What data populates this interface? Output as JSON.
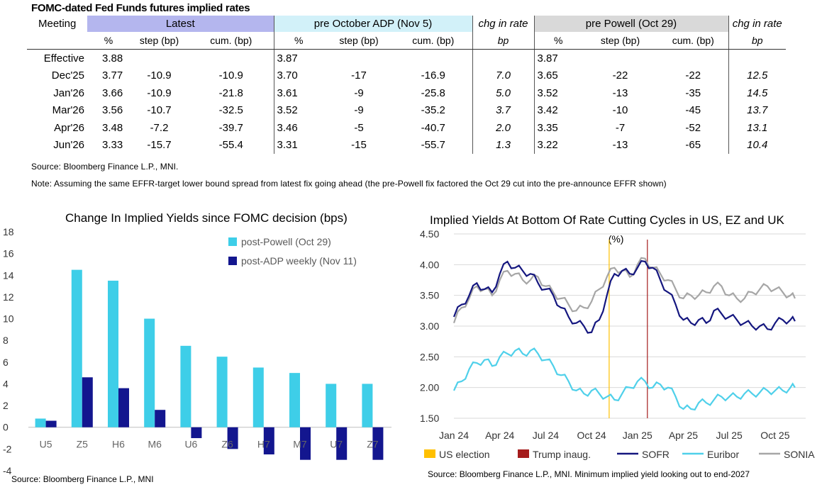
{
  "table": {
    "title": "FOMC-dated Fed Funds futures implied rates",
    "headers": {
      "meeting": "Meeting",
      "latest": "Latest",
      "pre_adp": "pre October ADP (Nov 5)",
      "chg1": "chg in rate",
      "pre_powell": "pre Powell (Oct 29)",
      "chg2": "chg in rate"
    },
    "subheaders": {
      "pct": "%",
      "step": "step (bp)",
      "cum": "cum. (bp)",
      "bp": "bp"
    },
    "rows": [
      {
        "meeting": "Effective",
        "l_pct": "3.88",
        "l_step": "",
        "l_cum": "",
        "a_pct": "3.87",
        "a_step": "",
        "a_cum": "",
        "c1": "",
        "p_pct": "3.87",
        "p_step": "",
        "p_cum": "",
        "c2": ""
      },
      {
        "meeting": "Dec'25",
        "l_pct": "3.77",
        "l_step": "-10.9",
        "l_cum": "-10.9",
        "a_pct": "3.70",
        "a_step": "-17",
        "a_cum": "-16.9",
        "c1": "7.0",
        "p_pct": "3.65",
        "p_step": "-22",
        "p_cum": "-22",
        "c2": "12.5"
      },
      {
        "meeting": "Jan'26",
        "l_pct": "3.66",
        "l_step": "-10.9",
        "l_cum": "-21.8",
        "a_pct": "3.61",
        "a_step": "-9",
        "a_cum": "-25.8",
        "c1": "5.0",
        "p_pct": "3.52",
        "p_step": "-13",
        "p_cum": "-35",
        "c2": "14.5"
      },
      {
        "meeting": "Mar'26",
        "l_pct": "3.56",
        "l_step": "-10.7",
        "l_cum": "-32.5",
        "a_pct": "3.52",
        "a_step": "-9",
        "a_cum": "-35.2",
        "c1": "3.7",
        "p_pct": "3.42",
        "p_step": "-10",
        "p_cum": "-45",
        "c2": "13.7"
      },
      {
        "meeting": "Apr'26",
        "l_pct": "3.48",
        "l_step": "-7.2",
        "l_cum": "-39.7",
        "a_pct": "3.46",
        "a_step": "-5",
        "a_cum": "-40.7",
        "c1": "2.0",
        "p_pct": "3.35",
        "p_step": "-7",
        "p_cum": "-52",
        "c2": "13.1"
      },
      {
        "meeting": "Jun'26",
        "l_pct": "3.33",
        "l_step": "-15.7",
        "l_cum": "-55.4",
        "a_pct": "3.31",
        "a_step": "-15",
        "a_cum": "-55.7",
        "c1": "1.3",
        "p_pct": "3.22",
        "p_step": "-13",
        "p_cum": "-65",
        "c2": "10.4"
      }
    ],
    "source": "Source: Bloomberg Finance L.P., MNI.",
    "note": "Note: Assuming the same  EFFR-target lower bound spread from latest fix going ahead (the pre-Powell fix factored the Oct 29 cut into the pre-announce EFFR shown)"
  },
  "colors": {
    "latest_header": "#b4b6ee",
    "pre_adp_header": "#d2f1f9",
    "pre_powell_header": "#d9d9d9",
    "post_powell": "#3ecee8",
    "post_adp": "#13168f",
    "sofr": "#14167f",
    "euribor": "#4fd0ea",
    "sonia": "#a6a6a6",
    "us_election": "#ffc000",
    "trump_inaug": "#a51c1c"
  },
  "chart_data": [
    {
      "type": "bar",
      "title": "Change In Implied Yields since FOMC decision (bps)",
      "categories": [
        "U5",
        "Z5",
        "H6",
        "M6",
        "U6",
        "Z6",
        "H7",
        "M7",
        "U7",
        "Z7"
      ],
      "series": [
        {
          "name": "post-Powell (Oct 29)",
          "values": [
            0.8,
            14.5,
            13.5,
            10.0,
            7.5,
            6.5,
            5.5,
            5.0,
            4.0,
            4.0
          ]
        },
        {
          "name": "post-ADP weekly (Nov 11)",
          "values": [
            0.6,
            4.6,
            3.6,
            1.6,
            -1.0,
            -2.0,
            -2.5,
            -3.0,
            -3.0,
            -3.0
          ]
        }
      ],
      "ylim": [
        -4,
        18
      ],
      "yticks": [
        "18",
        "16",
        "14",
        "12",
        "10",
        "8",
        "6",
        "4",
        "2",
        "0",
        "-2",
        "-4"
      ],
      "legend": "top-right",
      "source": "Source: Bloomberg Finance L.P., MNI"
    },
    {
      "type": "line",
      "title": "Implied Yields At Bottom Of Rate Cutting Cycles in US, EZ and UK",
      "ylabel": "(%)",
      "ylim": [
        1.5,
        4.5
      ],
      "yticks": [
        "4.50",
        "4.00",
        "3.50",
        "3.00",
        "2.50",
        "2.00",
        "1.50"
      ],
      "xticks": [
        "Jan 24",
        "Apr 24",
        "Jul 24",
        "Oct 24",
        "Jan 25",
        "Apr 25",
        "Jul 25",
        "Oct 25"
      ],
      "x_months": [
        0,
        3,
        6,
        9,
        12,
        15,
        18,
        21
      ],
      "events": [
        {
          "name": "US election",
          "x": 10.15
        },
        {
          "name": "Trump inaug.",
          "x": 12.65
        }
      ],
      "series": [
        {
          "name": "SOFR",
          "x": [
            0,
            0.5,
            1,
            1.5,
            2,
            2.5,
            3,
            3.5,
            4,
            4.5,
            5,
            5.5,
            6,
            6.5,
            7,
            7.5,
            8,
            8.5,
            9,
            9.5,
            10,
            10.5,
            11,
            11.5,
            12,
            12.5,
            13,
            13.5,
            14,
            14.5,
            15,
            15.5,
            16,
            16.5,
            17,
            17.5,
            18,
            18.5,
            19,
            19.5,
            20,
            20.5,
            21,
            21.5,
            22,
            22.3
          ],
          "values": [
            3.15,
            3.35,
            3.5,
            3.7,
            3.6,
            3.55,
            3.85,
            4.05,
            3.95,
            3.9,
            3.85,
            3.7,
            3.6,
            3.5,
            3.3,
            3.15,
            3.05,
            3.0,
            2.9,
            3.1,
            3.5,
            3.85,
            3.9,
            3.85,
            3.95,
            4.05,
            3.95,
            3.75,
            3.55,
            3.35,
            3.1,
            3.05,
            3.1,
            3.05,
            3.25,
            3.2,
            3.15,
            3.1,
            3.05,
            3.0,
            3.0,
            2.95,
            3.05,
            3.1,
            3.1,
            3.08
          ]
        },
        {
          "name": "Euribor",
          "x": [
            0,
            0.5,
            1,
            1.5,
            2,
            2.5,
            3,
            3.5,
            4,
            4.5,
            5,
            5.5,
            6,
            6.5,
            7,
            7.5,
            8,
            8.5,
            9,
            9.5,
            10,
            10.5,
            11,
            11.5,
            12,
            12.5,
            13,
            13.5,
            14,
            14.5,
            15,
            15.5,
            16,
            16.5,
            17,
            17.5,
            18,
            18.5,
            19,
            19.5,
            20,
            20.5,
            21,
            21.5,
            22,
            22.3
          ],
          "values": [
            1.95,
            2.1,
            2.3,
            2.4,
            2.45,
            2.35,
            2.5,
            2.55,
            2.6,
            2.55,
            2.6,
            2.55,
            2.45,
            2.35,
            2.2,
            2.1,
            1.95,
            1.9,
            1.95,
            1.9,
            1.85,
            1.8,
            1.9,
            2.0,
            2.1,
            2.1,
            2.0,
            2.05,
            2.0,
            1.85,
            1.65,
            1.65,
            1.75,
            1.75,
            1.8,
            1.85,
            1.85,
            1.85,
            1.9,
            1.9,
            1.92,
            1.95,
            1.95,
            1.95,
            2.0,
            2.0
          ]
        },
        {
          "name": "SONIA",
          "x": [
            0,
            0.5,
            1,
            1.5,
            2,
            2.5,
            3,
            3.5,
            4,
            4.5,
            5,
            5.5,
            6,
            6.5,
            7,
            7.5,
            8,
            8.5,
            9,
            9.5,
            10,
            10.5,
            11,
            11.5,
            12,
            12.5,
            13,
            13.5,
            14,
            14.5,
            15,
            15.5,
            16,
            16.5,
            17,
            17.5,
            18,
            18.5,
            19,
            19.5,
            20,
            20.5,
            21,
            21.5,
            22,
            22.3
          ],
          "values": [
            3.05,
            3.3,
            3.45,
            3.65,
            3.6,
            3.5,
            3.75,
            3.9,
            3.85,
            3.75,
            3.75,
            3.8,
            3.65,
            3.55,
            3.45,
            3.35,
            3.25,
            3.3,
            3.4,
            3.6,
            3.8,
            3.95,
            3.9,
            3.8,
            4.0,
            4.1,
            3.95,
            3.85,
            3.75,
            3.6,
            3.45,
            3.5,
            3.5,
            3.55,
            3.65,
            3.65,
            3.5,
            3.45,
            3.45,
            3.55,
            3.6,
            3.65,
            3.6,
            3.55,
            3.5,
            3.45
          ]
        }
      ],
      "legend": "bottom",
      "source": "Source: Bloomberg Finance L.P., MNI. Minimum implied yield looking out to end-2027"
    }
  ]
}
